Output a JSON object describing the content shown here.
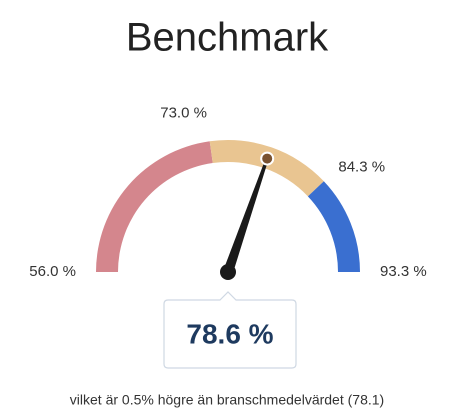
{
  "chart_data": {
    "type": "gauge",
    "title": "Benchmark",
    "value": 78.6,
    "value_label": "78.6 %",
    "ylim": [
      56.0,
      93.3
    ],
    "yticks": [
      {
        "value": 56.0,
        "label": "56.0 %"
      },
      {
        "value": 73.0,
        "label": "73.0 %"
      },
      {
        "value": 84.3,
        "label": "84.3 %"
      },
      {
        "value": 93.3,
        "label": "93.3 %"
      }
    ],
    "band_colors": [
      "#d4868d",
      "#e9c591",
      "#3a6fd0"
    ],
    "needle_color": "#1a1a1a",
    "subtitle": "vilket är 0.5% högre än branschmedelvärdet (78.1)"
  }
}
